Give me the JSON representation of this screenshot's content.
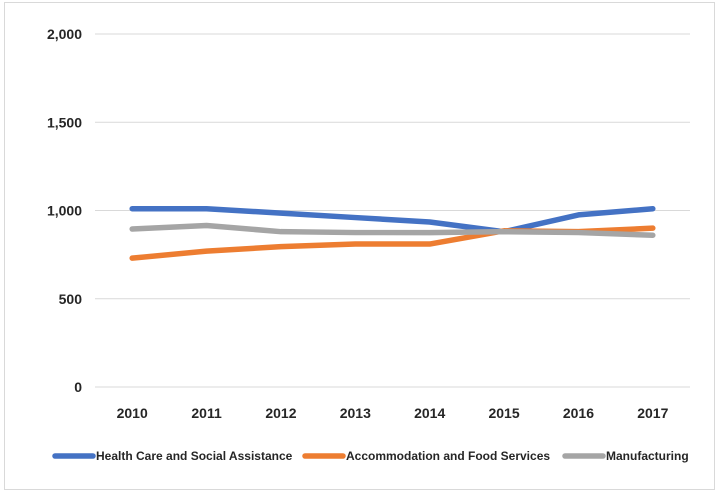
{
  "chart_data": {
    "type": "line",
    "title": "",
    "xlabel": "",
    "ylabel": "",
    "categories": [
      "2010",
      "2011",
      "2012",
      "2013",
      "2014",
      "2015",
      "2016",
      "2017"
    ],
    "ylim": [
      0,
      2000
    ],
    "yticks": [
      0,
      500,
      1000,
      1500,
      2000
    ],
    "ytick_labels": [
      "0",
      "500",
      "1,000",
      "1,500",
      "2,000"
    ],
    "grid": true,
    "legend_position": "bottom",
    "series": [
      {
        "name": "Health Care and Social Assistance",
        "color": "#4472c4",
        "values": [
          1010,
          1010,
          985,
          960,
          935,
          880,
          975,
          1010
        ]
      },
      {
        "name": "Accommodation and Food Services",
        "color": "#ed7d31",
        "values": [
          730,
          770,
          795,
          810,
          810,
          885,
          880,
          900
        ]
      },
      {
        "name": "Manufacturing",
        "color": "#a5a5a5",
        "values": [
          895,
          915,
          880,
          875,
          875,
          880,
          875,
          860
        ]
      }
    ]
  }
}
